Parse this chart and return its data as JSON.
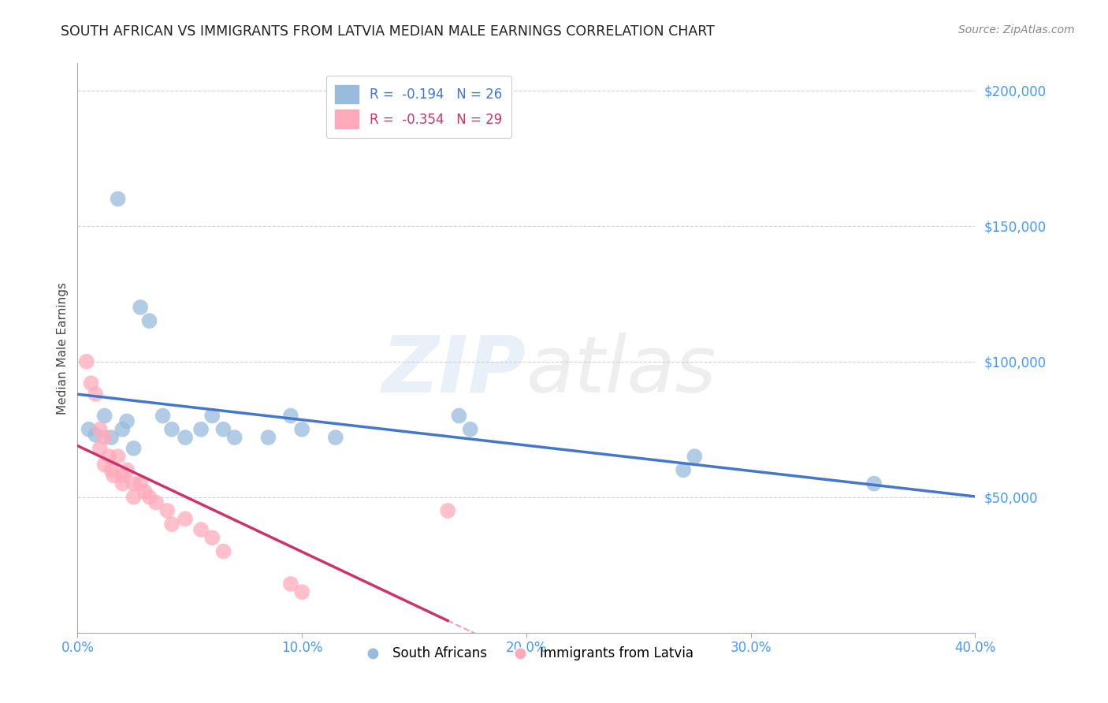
{
  "title": "SOUTH AFRICAN VS IMMIGRANTS FROM LATVIA MEDIAN MALE EARNINGS CORRELATION CHART",
  "source_text": "Source: ZipAtlas.com",
  "xlabel": "",
  "ylabel": "Median Male Earnings",
  "x_min": 0.0,
  "x_max": 0.4,
  "y_min": 0,
  "y_max": 210000,
  "y_ticks": [
    0,
    50000,
    100000,
    150000,
    200000
  ],
  "y_tick_labels": [
    "",
    "$50,000",
    "$100,000",
    "$150,000",
    "$200,000"
  ],
  "x_ticks": [
    0.0,
    0.1,
    0.2,
    0.3,
    0.4
  ],
  "x_tick_labels": [
    "0.0%",
    "10.0%",
    "20.0%",
    "30.0%",
    "40.0%"
  ],
  "blue_color": "#99BBDD",
  "pink_color": "#FFAABB",
  "blue_line_color": "#4477CC",
  "pink_line_color": "#CC3366",
  "watermark_zip": "ZIP",
  "watermark_atlas": "atlas",
  "south_africans_label": "South Africans",
  "immigrants_label": "Immigrants from Latvia",
  "blue_x": [
    0.005,
    0.008,
    0.012,
    0.015,
    0.018,
    0.02,
    0.022,
    0.025,
    0.028,
    0.032,
    0.038,
    0.042,
    0.048,
    0.055,
    0.06,
    0.065,
    0.07,
    0.085,
    0.095,
    0.1,
    0.115,
    0.17,
    0.175,
    0.27,
    0.275,
    0.355
  ],
  "blue_y": [
    75000,
    73000,
    80000,
    72000,
    160000,
    75000,
    78000,
    68000,
    120000,
    115000,
    80000,
    75000,
    72000,
    75000,
    80000,
    75000,
    72000,
    72000,
    80000,
    75000,
    72000,
    80000,
    75000,
    60000,
    65000,
    55000
  ],
  "pink_x": [
    0.004,
    0.006,
    0.008,
    0.01,
    0.01,
    0.012,
    0.012,
    0.014,
    0.015,
    0.016,
    0.018,
    0.02,
    0.02,
    0.022,
    0.025,
    0.025,
    0.028,
    0.03,
    0.032,
    0.035,
    0.04,
    0.042,
    0.048,
    0.055,
    0.06,
    0.065,
    0.095,
    0.1,
    0.165
  ],
  "pink_y": [
    100000,
    92000,
    88000,
    75000,
    68000,
    72000,
    62000,
    65000,
    60000,
    58000,
    65000,
    58000,
    55000,
    60000,
    55000,
    50000,
    55000,
    52000,
    50000,
    48000,
    45000,
    40000,
    42000,
    38000,
    35000,
    30000,
    18000,
    15000,
    45000
  ]
}
